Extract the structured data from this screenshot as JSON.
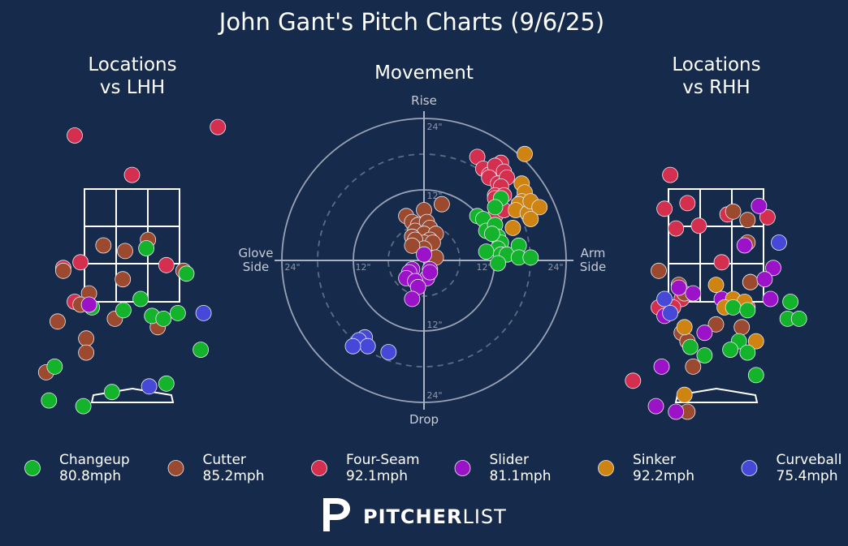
{
  "title": "John Gant's Pitch Charts (9/6/25)",
  "panels": {
    "lhh_title": [
      "Locations",
      "vs LHH"
    ],
    "movement_title": "Movement",
    "rhh_title": [
      "Locations",
      "vs RHH"
    ]
  },
  "movement_labels": {
    "top": "Rise",
    "bottom": "Drop",
    "left": [
      "Glove",
      "Side"
    ],
    "right": [
      "Arm",
      "Side"
    ],
    "rings": [
      "24\"",
      "12\""
    ]
  },
  "brand": {
    "bold": "PITCHER",
    "light": "LIST"
  },
  "colors": {
    "background": "#162a4b",
    "Changeup": "#14b32c",
    "Cutter": "#9c4a2f",
    "Four-Seam": "#d42f4f",
    "Slider": "#9b12c9",
    "Sinker": "#cf8412",
    "Curveball": "#4648d8"
  },
  "chart_data": [
    {
      "type": "scatter",
      "name": "movement",
      "xlabel": "Glove Side / Arm Side",
      "ylabel": "Drop / Rise",
      "xlim": [
        -24,
        24
      ],
      "ylim": [
        -24,
        24
      ],
      "units": "inches",
      "series": [
        {
          "name": "Four-Seam",
          "points": [
            [
              9,
              17.5
            ],
            [
              10,
              15.5
            ],
            [
              11,
              14.5
            ],
            [
              13,
              16.5
            ],
            [
              12,
              16
            ],
            [
              13.5,
              15
            ],
            [
              11,
              14
            ],
            [
              12.5,
              13
            ],
            [
              14,
              14
            ],
            [
              13,
              12.5
            ],
            [
              12,
              11
            ],
            [
              13.5,
              11
            ],
            [
              12,
              10.5
            ],
            [
              13,
              9
            ],
            [
              12,
              7.5
            ],
            [
              13.5,
              8.5
            ]
          ]
        },
        {
          "name": "Sinker",
          "points": [
            [
              17,
              18
            ],
            [
              16.5,
              13
            ],
            [
              17,
              11.5
            ],
            [
              16.5,
              10
            ],
            [
              16,
              9.5
            ],
            [
              15.5,
              8.5
            ],
            [
              17.5,
              8
            ],
            [
              18,
              10
            ],
            [
              19.5,
              9
            ],
            [
              18,
              7
            ],
            [
              15,
              5.5
            ]
          ]
        },
        {
          "name": "Changeup",
          "points": [
            [
              13,
              10.5
            ],
            [
              12,
              9
            ],
            [
              9,
              7.5
            ],
            [
              10,
              7
            ],
            [
              10.5,
              5
            ],
            [
              12,
              6
            ],
            [
              12.5,
              4
            ],
            [
              13,
              3
            ],
            [
              11.5,
              4.5
            ],
            [
              12.5,
              2
            ],
            [
              10.5,
              1.5
            ],
            [
              13,
              1
            ],
            [
              14,
              1
            ],
            [
              16,
              2.5
            ],
            [
              16,
              0.5
            ],
            [
              18,
              0.5
            ],
            [
              12.5,
              -0.5
            ]
          ]
        },
        {
          "name": "Cutter",
          "points": [
            [
              0,
              8.5
            ],
            [
              3,
              9.5
            ],
            [
              -3,
              7.5
            ],
            [
              -2,
              6.5
            ],
            [
              -1,
              6
            ],
            [
              0.5,
              6.5
            ],
            [
              1,
              5.5
            ],
            [
              -1.5,
              5
            ],
            [
              0,
              4.5
            ],
            [
              2,
              4.5
            ],
            [
              -2,
              4
            ],
            [
              1,
              3.5
            ],
            [
              0,
              3
            ],
            [
              -2,
              4
            ],
            [
              -1.5,
              3.5
            ],
            [
              1.5,
              3
            ],
            [
              0,
              2
            ],
            [
              -2,
              2.5
            ],
            [
              2,
              0.5
            ]
          ]
        },
        {
          "name": "Slider",
          "points": [
            [
              0,
              1
            ],
            [
              -2,
              -1.5
            ],
            [
              1,
              -1.5
            ],
            [
              -2.5,
              -2
            ],
            [
              -3,
              -3
            ],
            [
              0.5,
              -3
            ],
            [
              -1.5,
              -3.5
            ],
            [
              1,
              -2
            ],
            [
              -1,
              -4.5
            ],
            [
              -2,
              -6.5
            ]
          ]
        },
        {
          "name": "Curveball",
          "points": [
            [
              -10,
              -13
            ],
            [
              -11,
              -13.5
            ],
            [
              -9.5,
              -14.5
            ],
            [
              -12,
              -14.5
            ],
            [
              -6,
              -15.5
            ]
          ]
        }
      ]
    },
    {
      "type": "scatter",
      "name": "locations_vs_lhh",
      "xlim": [
        -2.3,
        2.3
      ],
      "ylim": [
        -0.8,
        5.2
      ],
      "series": [
        {
          "name": "Four-Seam",
          "points": [
            [
              -1.0,
              4.45
            ],
            [
              1.5,
              4.6
            ],
            [
              0.0,
              3.75
            ],
            [
              -0.9,
              2.2
            ],
            [
              0.6,
              2.15
            ],
            [
              -1.2,
              2.1
            ],
            [
              -1.0,
              1.5
            ]
          ]
        },
        {
          "name": "Cutter",
          "points": [
            [
              -0.5,
              2.5
            ],
            [
              0.28,
              2.6
            ],
            [
              -0.12,
              2.4
            ],
            [
              -1.2,
              2.05
            ],
            [
              0.9,
              2.05
            ],
            [
              -0.16,
              1.9
            ],
            [
              -0.75,
              1.65
            ],
            [
              -0.9,
              1.45
            ],
            [
              -0.3,
              1.2
            ],
            [
              -1.3,
              1.15
            ],
            [
              0.45,
              1.05
            ],
            [
              -0.8,
              0.85
            ],
            [
              -0.8,
              0.6
            ],
            [
              -1.5,
              0.25
            ]
          ]
        },
        {
          "name": "Changeup",
          "points": [
            [
              0.25,
              2.45
            ],
            [
              0.95,
              2.0
            ],
            [
              0.15,
              1.55
            ],
            [
              -0.15,
              1.35
            ],
            [
              0.35,
              1.25
            ],
            [
              0.55,
              1.2
            ],
            [
              0.8,
              1.3
            ],
            [
              -0.7,
              1.4
            ],
            [
              1.2,
              0.65
            ],
            [
              -1.35,
              0.35
            ],
            [
              0.6,
              0.05
            ],
            [
              -0.35,
              -0.1
            ],
            [
              -1.45,
              -0.25
            ],
            [
              -0.85,
              -0.35
            ]
          ]
        },
        {
          "name": "Slider",
          "points": [
            [
              -0.75,
              1.45
            ]
          ]
        },
        {
          "name": "Curveball",
          "points": [
            [
              1.25,
              1.3
            ],
            [
              0.3,
              0.0
            ]
          ]
        }
      ]
    },
    {
      "type": "scatter",
      "name": "locations_vs_rhh",
      "xlim": [
        -2.3,
        2.3
      ],
      "ylim": [
        -0.8,
        5.2
      ],
      "series": [
        {
          "name": "Four-Seam",
          "points": [
            [
              -0.8,
              3.75
            ],
            [
              -0.9,
              3.15
            ],
            [
              -0.5,
              3.25
            ],
            [
              -0.7,
              2.8
            ],
            [
              -0.3,
              2.85
            ],
            [
              0.2,
              3.05
            ],
            [
              0.9,
              3.0
            ],
            [
              0.1,
              2.2
            ],
            [
              0.6,
              1.85
            ],
            [
              -0.6,
              1.55
            ],
            [
              -1.0,
              1.4
            ],
            [
              -0.75,
              1.4
            ],
            [
              0.55,
              1.4
            ],
            [
              -1.45,
              0.1
            ]
          ]
        },
        {
          "name": "Cutter",
          "points": [
            [
              0.3,
              3.1
            ],
            [
              0.55,
              2.95
            ],
            [
              0.55,
              2.55
            ],
            [
              -1.0,
              2.05
            ],
            [
              -0.65,
              1.8
            ],
            [
              -0.55,
              1.65
            ],
            [
              0.6,
              1.85
            ],
            [
              -0.6,
              0.95
            ],
            [
              -0.5,
              0.8
            ],
            [
              0.0,
              1.1
            ],
            [
              0.45,
              1.05
            ],
            [
              -0.4,
              0.35
            ],
            [
              -0.5,
              -0.45
            ]
          ]
        },
        {
          "name": "Slider",
          "points": [
            [
              0.75,
              3.2
            ],
            [
              0.5,
              2.5
            ],
            [
              1.0,
              2.1
            ],
            [
              0.85,
              1.9
            ],
            [
              -0.65,
              1.75
            ],
            [
              -0.4,
              1.65
            ],
            [
              0.1,
              1.55
            ],
            [
              0.95,
              1.55
            ],
            [
              -0.9,
              1.25
            ],
            [
              -0.2,
              0.95
            ],
            [
              -0.95,
              0.35
            ],
            [
              -1.05,
              -0.35
            ],
            [
              -0.7,
              -0.45
            ]
          ]
        },
        {
          "name": "Sinker",
          "points": [
            [
              0.0,
              1.8
            ],
            [
              0.3,
              1.55
            ],
            [
              0.5,
              1.5
            ],
            [
              0.15,
              1.4
            ],
            [
              -0.55,
              1.05
            ],
            [
              0.7,
              0.8
            ],
            [
              -0.55,
              -0.15
            ]
          ]
        },
        {
          "name": "Changeup",
          "points": [
            [
              0.3,
              1.4
            ],
            [
              0.55,
              1.35
            ],
            [
              1.3,
              1.5
            ],
            [
              1.25,
              1.2
            ],
            [
              1.45,
              1.2
            ],
            [
              0.4,
              0.8
            ],
            [
              -0.45,
              0.7
            ],
            [
              -0.2,
              0.55
            ],
            [
              0.25,
              0.65
            ],
            [
              0.55,
              0.6
            ],
            [
              0.7,
              0.2
            ]
          ]
        },
        {
          "name": "Curveball",
          "points": [
            [
              1.1,
              2.55
            ],
            [
              -0.9,
              1.55
            ],
            [
              -0.8,
              1.3
            ]
          ]
        }
      ]
    }
  ],
  "legend": [
    {
      "pitch": "Changeup",
      "speed": "80.8mph"
    },
    {
      "pitch": "Cutter",
      "speed": "85.2mph"
    },
    {
      "pitch": "Four-Seam",
      "speed": "92.1mph"
    },
    {
      "pitch": "Slider",
      "speed": "81.1mph"
    },
    {
      "pitch": "Sinker",
      "speed": "92.2mph"
    },
    {
      "pitch": "Curveball",
      "speed": "75.4mph"
    }
  ]
}
